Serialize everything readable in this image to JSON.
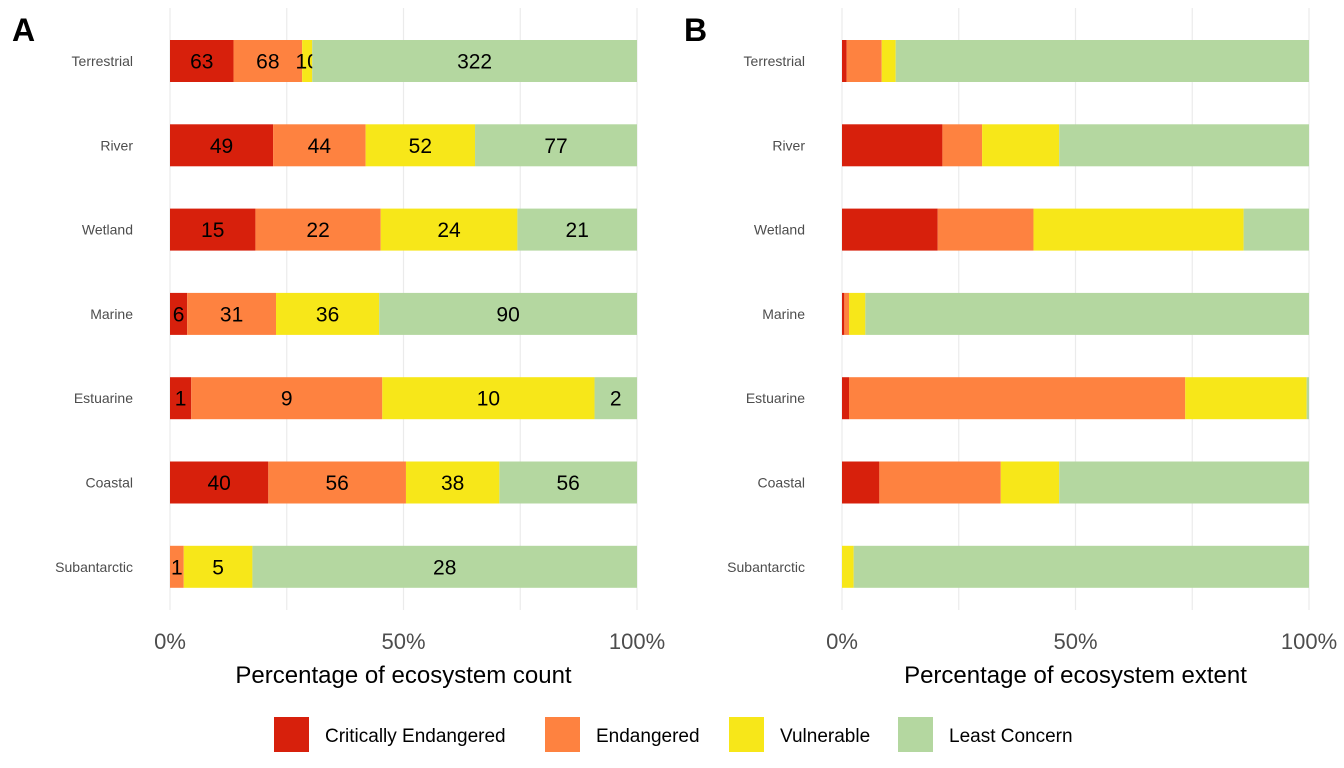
{
  "colors": {
    "Critically Endangered": "#d7200c",
    "Endangered": "#fe8240",
    "Vulnerable": "#f7e719",
    "Least Concern": "#b4d7a0"
  },
  "legend": {
    "items": [
      "Critically Endangered",
      "Endangered",
      "Vulnerable",
      "Least Concern"
    ]
  },
  "chart_data": [
    {
      "type": "bar",
      "orientation": "horizontal",
      "stacked": "percent",
      "panel_tag": "A",
      "xlabel": "Percentage of ecosystem count",
      "ylabel": "",
      "xlim": [
        0,
        100
      ],
      "x_ticks": [
        "0%",
        "50%",
        "100%"
      ],
      "grid": true,
      "legend_position": "bottom",
      "categories": [
        "Terrestrial",
        "River",
        "Wetland",
        "Marine",
        "Estuarine",
        "Coastal",
        "Subantarctic"
      ],
      "series": [
        {
          "name": "Critically Endangered",
          "values": [
            63,
            49,
            15,
            6,
            1,
            40,
            0
          ]
        },
        {
          "name": "Endangered",
          "values": [
            68,
            44,
            22,
            31,
            9,
            56,
            1
          ]
        },
        {
          "name": "Vulnerable",
          "values": [
            10,
            52,
            24,
            36,
            10,
            38,
            5
          ]
        },
        {
          "name": "Least Concern",
          "values": [
            322,
            77,
            21,
            90,
            2,
            56,
            28
          ]
        }
      ],
      "show_value_labels": true
    },
    {
      "type": "bar",
      "orientation": "horizontal",
      "stacked": "percent",
      "panel_tag": "B",
      "xlabel": "Percentage of ecosystem extent",
      "ylabel": "",
      "xlim": [
        0,
        100
      ],
      "x_ticks": [
        "0%",
        "50%",
        "100%"
      ],
      "grid": true,
      "legend_position": "bottom",
      "categories": [
        "Terrestrial",
        "River",
        "Wetland",
        "Marine",
        "Estuarine",
        "Coastal",
        "Subantarctic"
      ],
      "series": [
        {
          "name": "Critically Endangered",
          "values": [
            1,
            21.5,
            20.5,
            0.5,
            1.5,
            8,
            0
          ]
        },
        {
          "name": "Endangered",
          "values": [
            7.5,
            8.5,
            20.5,
            1,
            72,
            26,
            0
          ]
        },
        {
          "name": "Vulnerable",
          "values": [
            3,
            16.5,
            45,
            3.5,
            26,
            12.5,
            2.5
          ]
        },
        {
          "name": "Least Concern",
          "values": [
            88.5,
            53.5,
            14,
            95,
            0.5,
            53.5,
            97.5
          ]
        }
      ],
      "show_value_labels": false
    }
  ]
}
